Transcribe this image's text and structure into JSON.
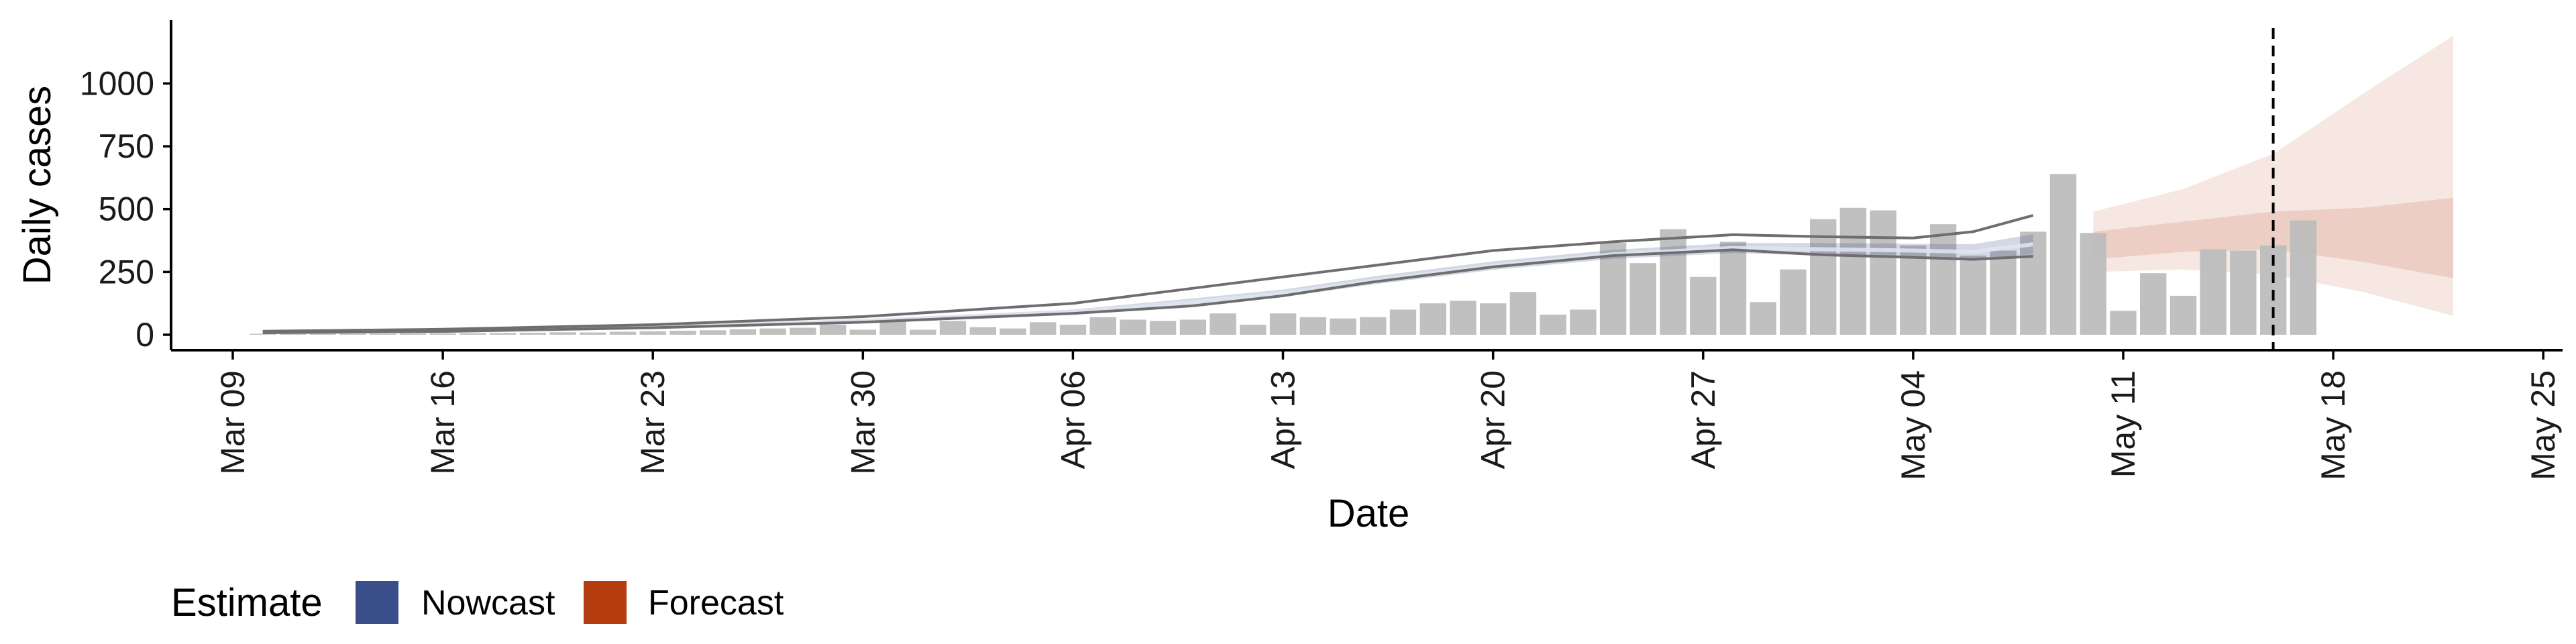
{
  "chart_data": {
    "type": "bar",
    "xlabel": "Date",
    "ylabel": "Daily cases",
    "x_type": "date",
    "xlim": [
      "2020-03-09",
      "2020-05-25"
    ],
    "ylim": [
      -60,
      1260
    ],
    "y_ticks": [
      0,
      250,
      500,
      750,
      1000
    ],
    "y_tick_labels": [
      "0",
      "250",
      "500",
      "750",
      "1000"
    ],
    "x_ticks": [
      "2020-03-09",
      "2020-03-16",
      "2020-03-23",
      "2020-03-30",
      "2020-04-06",
      "2020-04-13",
      "2020-04-20",
      "2020-04-27",
      "2020-05-04",
      "2020-05-11",
      "2020-05-18",
      "2020-05-25"
    ],
    "x_tick_labels": [
      "Mar 09",
      "Mar 16",
      "Mar 23",
      "Mar 30",
      "Apr 06",
      "Apr 13",
      "Apr 20",
      "Apr 27",
      "May 04",
      "May 11",
      "May 18",
      "May 25"
    ],
    "grid": false,
    "colors": {
      "bars": "#bdbdbd",
      "nowcast": "#3a4f8a",
      "forecast": "#b53c0f",
      "lines": "#6e6e6e",
      "axis": "#000000"
    },
    "bars": {
      "start_date": "2020-03-10",
      "values": [
        2,
        3,
        3,
        4,
        4,
        5,
        5,
        6,
        7,
        8,
        10,
        9,
        12,
        14,
        16,
        18,
        22,
        25,
        28,
        40,
        20,
        55,
        20,
        55,
        30,
        25,
        50,
        40,
        70,
        60,
        55,
        60,
        85,
        40,
        85,
        70,
        65,
        70,
        100,
        125,
        135,
        125,
        170,
        80,
        100,
        365,
        285,
        420,
        230,
        370,
        130,
        260,
        460,
        505,
        495,
        355,
        440,
        315,
        335,
        410,
        640,
        405,
        95,
        245,
        155,
        340,
        335,
        355,
        455
      ]
    },
    "nowcast_band": {
      "start_date": "2020-03-10",
      "end_date": "2020-05-08",
      "x": [
        "2020-03-10",
        "2020-03-16",
        "2020-03-23",
        "2020-03-30",
        "2020-04-06",
        "2020-04-10",
        "2020-04-13",
        "2020-04-16",
        "2020-04-20",
        "2020-04-24",
        "2020-04-28",
        "2020-05-01",
        "2020-05-04",
        "2020-05-06",
        "2020-05-08"
      ],
      "median": [
        10,
        15,
        30,
        55,
        90,
        130,
        165,
        215,
        275,
        320,
        345,
        340,
        335,
        330,
        360
      ],
      "lower90": [
        8,
        12,
        25,
        48,
        80,
        115,
        150,
        200,
        258,
        302,
        325,
        315,
        308,
        300,
        320
      ],
      "upper90": [
        12,
        18,
        35,
        62,
        100,
        145,
        180,
        232,
        292,
        338,
        365,
        365,
        362,
        360,
        400
      ],
      "lower_line": [
        8,
        13,
        28,
        50,
        85,
        115,
        155,
        210,
        270,
        315,
        338,
        318,
        308,
        300,
        312
      ],
      "upper_line": [
        14,
        22,
        40,
        72,
        125,
        185,
        230,
        275,
        335,
        370,
        398,
        390,
        385,
        410,
        475
      ]
    },
    "forecast_band": {
      "x": [
        "2020-05-10",
        "2020-05-13",
        "2020-05-16",
        "2020-05-19",
        "2020-05-22"
      ],
      "median": [
        380,
        395,
        405,
        390,
        385
      ],
      "lower50": [
        300,
        330,
        340,
        290,
        225
      ],
      "upper50": [
        410,
        450,
        490,
        505,
        545
      ],
      "lower90": [
        250,
        260,
        240,
        170,
        75
      ],
      "upper90": [
        490,
        580,
        720,
        960,
        1190
      ]
    },
    "vline_date": "2020-05-16",
    "legend": {
      "title": "Estimate",
      "entries": [
        {
          "name": "Nowcast",
          "color": "#3a4f8a"
        },
        {
          "name": "Forecast",
          "color": "#b53c0f"
        }
      ],
      "placement": "bottom-left"
    }
  }
}
